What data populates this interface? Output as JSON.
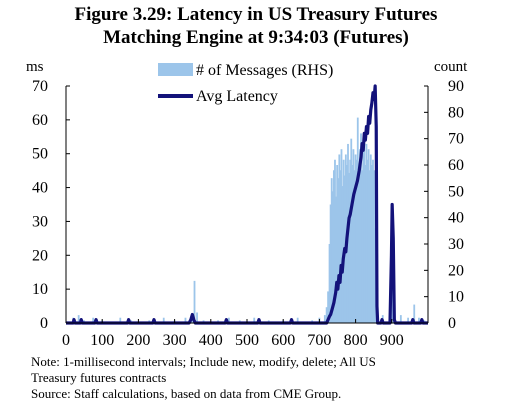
{
  "chart_data": {
    "type": "bar+line",
    "title": "Figure 3.29: Latency in US Treasury Futures",
    "subtitle": "Matching Engine at 9:34:03 (Futures)",
    "left_axis_unit": "ms",
    "right_axis_unit": "count",
    "y_left_range": [
      0,
      70
    ],
    "y_left_ticks": [
      "70",
      "60",
      "50",
      "40",
      "30",
      "20",
      "10",
      "0"
    ],
    "y_right_range": [
      0,
      90
    ],
    "y_right_ticks": [
      "90",
      "80",
      "70",
      "60",
      "50",
      "40",
      "30",
      "20",
      "10",
      "0"
    ],
    "x_range": [
      0,
      1000
    ],
    "x_ticks": [
      "0",
      "100",
      "200",
      "300",
      "400",
      "500",
      "600",
      "700",
      "800",
      "900"
    ],
    "grid": false,
    "legend_position": "top",
    "series": [
      {
        "name": "# of Messages (RHS)",
        "kind": "bar",
        "axis": "right",
        "color": "#9cc5ea",
        "points": [
          [
            20,
            2
          ],
          [
            35,
            3
          ],
          [
            50,
            1
          ],
          [
            75,
            2
          ],
          [
            100,
            1
          ],
          [
            150,
            2
          ],
          [
            180,
            1
          ],
          [
            230,
            1
          ],
          [
            270,
            2
          ],
          [
            300,
            1
          ],
          [
            330,
            2
          ],
          [
            348,
            3
          ],
          [
            355,
            16
          ],
          [
            362,
            4
          ],
          [
            380,
            1
          ],
          [
            420,
            1
          ],
          [
            450,
            2
          ],
          [
            480,
            1
          ],
          [
            520,
            2
          ],
          [
            560,
            1
          ],
          [
            600,
            1
          ],
          [
            640,
            2
          ],
          [
            680,
            1
          ],
          [
            700,
            2
          ],
          [
            715,
            3
          ],
          [
            720,
            6
          ],
          [
            724,
            12
          ],
          [
            728,
            30
          ],
          [
            731,
            45
          ],
          [
            734,
            55
          ],
          [
            737,
            50
          ],
          [
            740,
            58
          ],
          [
            743,
            62
          ],
          [
            746,
            48
          ],
          [
            749,
            60
          ],
          [
            752,
            55
          ],
          [
            755,
            64
          ],
          [
            758,
            58
          ],
          [
            761,
            66
          ],
          [
            764,
            52
          ],
          [
            767,
            62
          ],
          [
            770,
            56
          ],
          [
            773,
            64
          ],
          [
            776,
            60
          ],
          [
            779,
            68
          ],
          [
            782,
            57
          ],
          [
            785,
            62
          ],
          [
            788,
            70
          ],
          [
            791,
            60
          ],
          [
            794,
            66
          ],
          [
            797,
            58
          ],
          [
            800,
            64
          ],
          [
            803,
            62
          ],
          [
            806,
            78
          ],
          [
            809,
            60
          ],
          [
            812,
            66
          ],
          [
            815,
            72
          ],
          [
            818,
            58
          ],
          [
            821,
            65
          ],
          [
            824,
            70
          ],
          [
            827,
            60
          ],
          [
            830,
            68
          ],
          [
            833,
            62
          ],
          [
            836,
            66
          ],
          [
            839,
            58
          ],
          [
            842,
            64
          ],
          [
            845,
            60
          ],
          [
            848,
            62
          ],
          [
            851,
            58
          ],
          [
            854,
            36
          ],
          [
            857,
            12
          ],
          [
            860,
            4
          ],
          [
            875,
            3
          ],
          [
            895,
            4
          ],
          [
            900,
            38
          ],
          [
            905,
            5
          ],
          [
            925,
            3
          ],
          [
            945,
            2
          ],
          [
            962,
            7
          ],
          [
            975,
            2
          ],
          [
            990,
            1
          ]
        ]
      },
      {
        "name": "Avg Latency",
        "kind": "line",
        "axis": "left",
        "color": "#13127a",
        "points": [
          [
            0,
            0
          ],
          [
            20,
            0
          ],
          [
            22,
            1
          ],
          [
            25,
            0
          ],
          [
            40,
            0
          ],
          [
            42,
            1
          ],
          [
            45,
            0
          ],
          [
            80,
            0
          ],
          [
            83,
            1
          ],
          [
            86,
            0
          ],
          [
            170,
            0
          ],
          [
            173,
            1
          ],
          [
            176,
            0
          ],
          [
            240,
            0
          ],
          [
            243,
            1
          ],
          [
            246,
            0
          ],
          [
            340,
            0
          ],
          [
            345,
            1
          ],
          [
            349,
            2.5
          ],
          [
            353,
            1
          ],
          [
            357,
            0
          ],
          [
            440,
            0
          ],
          [
            443,
            1
          ],
          [
            446,
            0
          ],
          [
            530,
            0
          ],
          [
            533,
            1
          ],
          [
            536,
            0
          ],
          [
            620,
            0
          ],
          [
            623,
            1
          ],
          [
            626,
            0
          ],
          [
            720,
            0
          ],
          [
            724,
            1
          ],
          [
            728,
            2
          ],
          [
            731,
            2.5
          ],
          [
            735,
            4
          ],
          [
            740,
            6
          ],
          [
            745,
            9
          ],
          [
            748,
            12
          ],
          [
            751,
            10
          ],
          [
            754,
            14
          ],
          [
            757,
            12
          ],
          [
            760,
            17
          ],
          [
            763,
            15
          ],
          [
            766,
            19
          ],
          [
            770,
            22
          ],
          [
            773,
            21
          ],
          [
            776,
            25
          ],
          [
            779,
            28
          ],
          [
            782,
            31
          ],
          [
            785,
            32
          ],
          [
            790,
            35
          ],
          [
            795,
            38
          ],
          [
            800,
            40
          ],
          [
            805,
            42
          ],
          [
            810,
            45
          ],
          [
            815,
            49
          ],
          [
            818,
            53
          ],
          [
            821,
            51
          ],
          [
            824,
            56
          ],
          [
            827,
            54
          ],
          [
            830,
            58
          ],
          [
            833,
            56
          ],
          [
            836,
            61
          ],
          [
            839,
            59
          ],
          [
            842,
            63
          ],
          [
            845,
            65
          ],
          [
            848,
            68
          ],
          [
            851,
            66
          ],
          [
            854,
            70
          ],
          [
            857,
            58
          ],
          [
            859,
            5
          ],
          [
            861,
            0
          ],
          [
            870,
            0
          ],
          [
            873,
            1
          ],
          [
            876,
            0
          ],
          [
            895,
            0
          ],
          [
            899,
            20
          ],
          [
            901,
            35
          ],
          [
            904,
            25
          ],
          [
            907,
            1
          ],
          [
            910,
            0
          ],
          [
            955,
            0
          ],
          [
            958,
            1
          ],
          [
            961,
            0
          ],
          [
            980,
            0
          ],
          [
            983,
            1
          ],
          [
            986,
            0
          ],
          [
            1000,
            0
          ]
        ]
      }
    ],
    "notes": [
      "Note: 1-millisecond intervals; Include new, modify, delete; All US",
      "Treasury futures contracts",
      "Source: Staff calculations, based on data from CME Group."
    ]
  }
}
